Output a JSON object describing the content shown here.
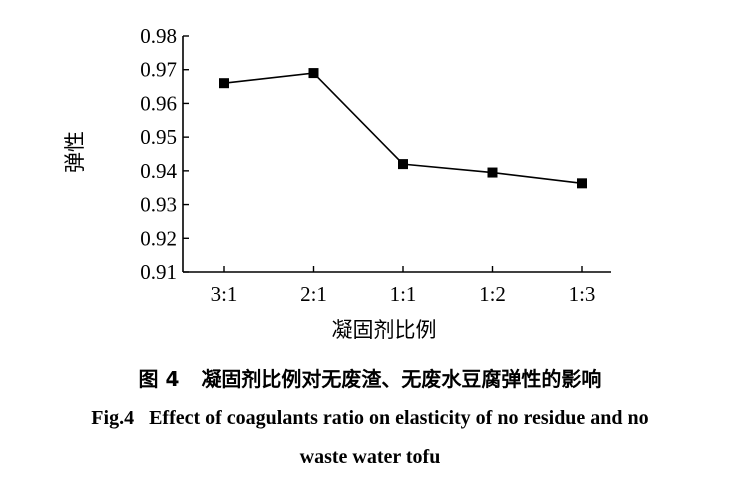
{
  "chart_data": {
    "type": "line",
    "categories": [
      "3:1",
      "2:1",
      "1:1",
      "1:2",
      "1:3"
    ],
    "series": [
      {
        "values": [
          0.966,
          0.969,
          0.942,
          0.9395,
          0.9363
        ]
      }
    ],
    "xlabel": "凝固剂比例",
    "ylabel": "弹性",
    "ylim": [
      0.91,
      0.98
    ],
    "yticks": [
      "0.91",
      "0.92",
      "0.93",
      "0.94",
      "0.95",
      "0.96",
      "0.97",
      "0.98"
    ],
    "grid": false,
    "marker": "square",
    "line_color": "#000000"
  },
  "caption": {
    "cn_number": "图 4",
    "cn_text": "凝固剂比例对无废渣、无废水豆腐弹性的影响",
    "en_line1": "Fig.4   Effect of coagulants ratio on elasticity of no residue and no",
    "en_line2": "waste water tofu"
  }
}
